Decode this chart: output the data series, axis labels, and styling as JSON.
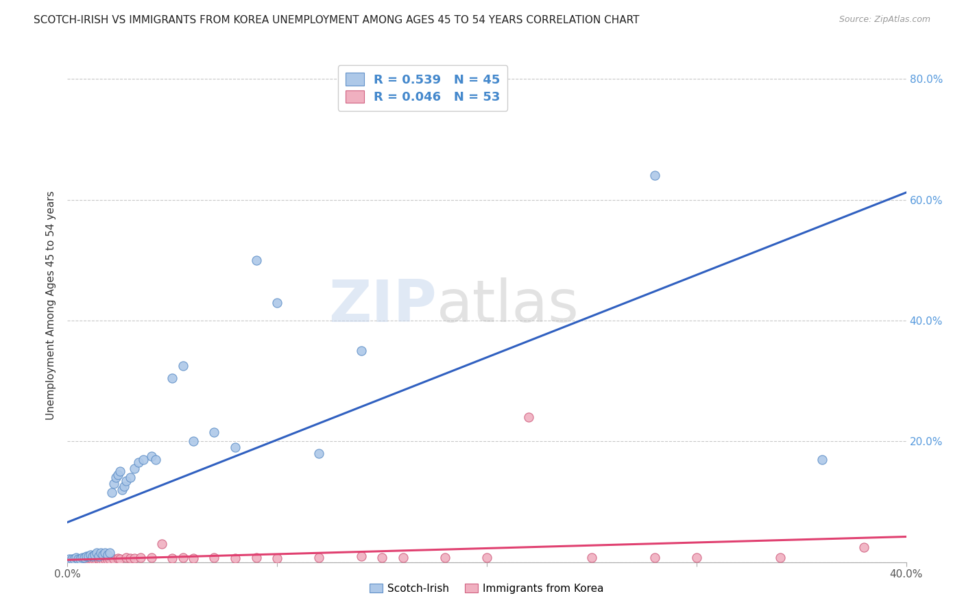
{
  "title": "SCOTCH-IRISH VS IMMIGRANTS FROM KOREA UNEMPLOYMENT AMONG AGES 45 TO 54 YEARS CORRELATION CHART",
  "source": "Source: ZipAtlas.com",
  "ylabel": "Unemployment Among Ages 45 to 54 years",
  "xlim": [
    0.0,
    0.4
  ],
  "ylim": [
    0.0,
    0.85
  ],
  "xticks": [
    0.0,
    0.1,
    0.2,
    0.3,
    0.4
  ],
  "xticklabels": [
    "0.0%",
    "",
    "",
    "",
    "40.0%"
  ],
  "yticks_right": [
    0.2,
    0.4,
    0.6,
    0.8
  ],
  "yticklabels_right": [
    "20.0%",
    "40.0%",
    "60.0%",
    "80.0%"
  ],
  "background_color": "#ffffff",
  "grid_color": "#c8c8c8",
  "scotch_irish_fill": "#adc8e8",
  "scotch_irish_edge": "#6090c8",
  "korea_fill": "#f0b0c0",
  "korea_edge": "#d06080",
  "scotch_irish_line_color": "#3060c0",
  "korea_line_color": "#e04070",
  "legend_R_scotch": "R = 0.539",
  "legend_N_scotch": "N = 45",
  "legend_R_korea": "R = 0.046",
  "legend_N_korea": "N = 53",
  "scotch_irish_x": [
    0.001,
    0.002,
    0.003,
    0.004,
    0.005,
    0.006,
    0.007,
    0.008,
    0.009,
    0.01,
    0.011,
    0.012,
    0.013,
    0.014,
    0.015,
    0.016,
    0.017,
    0.018,
    0.019,
    0.02,
    0.021,
    0.022,
    0.023,
    0.024,
    0.025,
    0.026,
    0.027,
    0.028,
    0.03,
    0.032,
    0.034,
    0.036,
    0.04,
    0.042,
    0.05,
    0.055,
    0.06,
    0.07,
    0.08,
    0.09,
    0.1,
    0.12,
    0.14,
    0.28,
    0.36
  ],
  "scotch_irish_y": [
    0.005,
    0.005,
    0.005,
    0.008,
    0.005,
    0.005,
    0.008,
    0.008,
    0.01,
    0.01,
    0.012,
    0.01,
    0.012,
    0.015,
    0.01,
    0.015,
    0.012,
    0.015,
    0.012,
    0.015,
    0.115,
    0.13,
    0.14,
    0.145,
    0.15,
    0.12,
    0.125,
    0.135,
    0.14,
    0.155,
    0.165,
    0.17,
    0.175,
    0.17,
    0.305,
    0.325,
    0.2,
    0.215,
    0.19,
    0.5,
    0.43,
    0.18,
    0.35,
    0.64,
    0.17
  ],
  "korea_x": [
    0.001,
    0.002,
    0.003,
    0.004,
    0.005,
    0.005,
    0.006,
    0.007,
    0.008,
    0.008,
    0.009,
    0.01,
    0.01,
    0.011,
    0.012,
    0.012,
    0.013,
    0.014,
    0.015,
    0.015,
    0.016,
    0.017,
    0.018,
    0.019,
    0.02,
    0.022,
    0.024,
    0.025,
    0.028,
    0.03,
    0.032,
    0.035,
    0.04,
    0.045,
    0.05,
    0.055,
    0.06,
    0.07,
    0.08,
    0.09,
    0.1,
    0.12,
    0.14,
    0.15,
    0.16,
    0.18,
    0.2,
    0.22,
    0.25,
    0.28,
    0.3,
    0.34,
    0.38
  ],
  "korea_y": [
    0.002,
    0.002,
    0.003,
    0.003,
    0.004,
    0.003,
    0.003,
    0.004,
    0.003,
    0.004,
    0.003,
    0.003,
    0.004,
    0.004,
    0.003,
    0.004,
    0.004,
    0.003,
    0.004,
    0.005,
    0.004,
    0.004,
    0.005,
    0.004,
    0.005,
    0.005,
    0.006,
    0.005,
    0.007,
    0.006,
    0.006,
    0.007,
    0.008,
    0.03,
    0.006,
    0.007,
    0.006,
    0.007,
    0.006,
    0.007,
    0.006,
    0.007,
    0.01,
    0.007,
    0.008,
    0.008,
    0.008,
    0.24,
    0.008,
    0.007,
    0.007,
    0.007,
    0.025
  ],
  "watermark_zip": "ZIP",
  "watermark_atlas": "atlas",
  "marker_size": 90
}
